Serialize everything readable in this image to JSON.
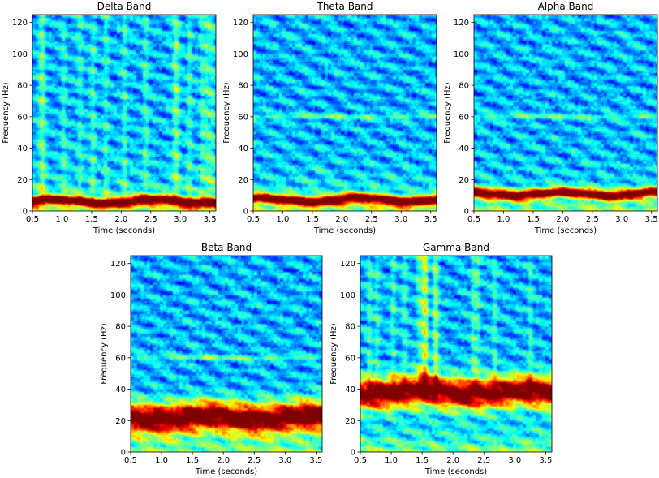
{
  "figure": {
    "panel_count": 5
  },
  "chart_data": [
    {
      "type": "heatmap",
      "title": "Delta Band",
      "xlabel": "Time (seconds)",
      "ylabel": "Frequency (Hz)",
      "xlim": [
        0.5,
        3.6
      ],
      "ylim": [
        0,
        125
      ],
      "xticks": [
        "0.5",
        "1.0",
        "1.5",
        "2.0",
        "2.5",
        "3.0",
        "3.5"
      ],
      "yticks": [
        "0",
        "20",
        "40",
        "60",
        "80",
        "100",
        "120"
      ],
      "band_center_hz": 6,
      "band_halfwidth_hz": 3,
      "line_noise_hz": 0,
      "vertical_streaks": true,
      "colormap": "jet"
    },
    {
      "type": "heatmap",
      "title": "Theta Band",
      "xlabel": "Time (seconds)",
      "ylabel": "Frequency (Hz)",
      "xlim": [
        0.5,
        3.6
      ],
      "ylim": [
        0,
        125
      ],
      "xticks": [
        "0.5",
        "1.0",
        "1.5",
        "2.0",
        "2.5",
        "3.0",
        "3.5"
      ],
      "yticks": [
        "0",
        "20",
        "40",
        "60",
        "80",
        "100",
        "120"
      ],
      "band_center_hz": 7,
      "band_halfwidth_hz": 3,
      "line_noise_hz": 60,
      "vertical_streaks": false,
      "colormap": "jet"
    },
    {
      "type": "heatmap",
      "title": "Alpha Band",
      "xlabel": "Time (seconds)",
      "ylabel": "Frequency (Hz)",
      "xlim": [
        0.5,
        3.6
      ],
      "ylim": [
        0,
        125
      ],
      "xticks": [
        "0.5",
        "1.0",
        "1.5",
        "2.0",
        "2.5",
        "3.0",
        "3.5"
      ],
      "yticks": [
        "0",
        "20",
        "40",
        "60",
        "80",
        "100",
        "120"
      ],
      "band_center_hz": 11,
      "band_halfwidth_hz": 3,
      "line_noise_hz": 60,
      "vertical_streaks": false,
      "colormap": "jet"
    },
    {
      "type": "heatmap",
      "title": "Beta Band",
      "xlabel": "Time (seconds)",
      "ylabel": "Frequency (Hz)",
      "xlim": [
        0.5,
        3.6
      ],
      "ylim": [
        0,
        125
      ],
      "xticks": [
        "0.5",
        "1.0",
        "1.5",
        "2.0",
        "2.5",
        "3.0",
        "3.5"
      ],
      "yticks": [
        "0",
        "20",
        "40",
        "60",
        "80",
        "100",
        "120"
      ],
      "band_center_hz": 22,
      "band_halfwidth_hz": 9,
      "line_noise_hz": 60,
      "vertical_streaks": false,
      "colormap": "jet"
    },
    {
      "type": "heatmap",
      "title": "Gamma Band",
      "xlabel": "Time (seconds)",
      "ylabel": "Frequency (Hz)",
      "xlim": [
        0.5,
        3.6
      ],
      "ylim": [
        0,
        125
      ],
      "xticks": [
        "0.5",
        "1.0",
        "1.5",
        "2.0",
        "2.5",
        "3.0",
        "3.5"
      ],
      "yticks": [
        "0",
        "20",
        "40",
        "60",
        "80",
        "100",
        "120"
      ],
      "band_center_hz": 38,
      "band_halfwidth_hz": 9,
      "line_noise_hz": 0,
      "vertical_streaks": true,
      "colormap": "jet"
    }
  ]
}
